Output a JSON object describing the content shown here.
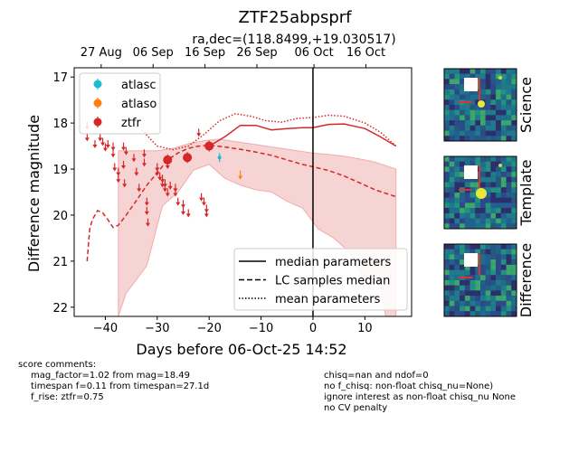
{
  "chart_data": {
    "type": "scatter",
    "title": "ZTF25abpsprf",
    "subtitle": "ra,dec=(118.8499,+19.030517)",
    "xlabel": "Days before 06-Oct-25 14:52",
    "ylabel": "Difference magnitude",
    "xlim": [
      -46,
      19
    ],
    "ylim": [
      22.2,
      16.8
    ],
    "x_ticks": [
      -40,
      -30,
      -20,
      -10,
      0,
      10
    ],
    "y_ticks": [
      17,
      18,
      19,
      20,
      21,
      22
    ],
    "top_axis": {
      "ticks": [
        {
          "x": -40.8,
          "label": "27 Aug"
        },
        {
          "x": -30.8,
          "label": "06 Sep"
        },
        {
          "x": -20.8,
          "label": "16 Sep"
        },
        {
          "x": -10.8,
          "label": "26 Sep"
        },
        {
          "x": 0.2,
          "label": "06 Oct"
        },
        {
          "x": 10.2,
          "label": "16 Oct"
        }
      ]
    },
    "vline_x": 0,
    "legend_filters": [
      {
        "name": "atlasc",
        "color": "#17becf"
      },
      {
        "name": "atlaso",
        "color": "#ff7f0e"
      },
      {
        "name": "ztfr",
        "color": "#d62728"
      }
    ],
    "legend_lines": [
      {
        "name": "median parameters",
        "style": "solid"
      },
      {
        "name": "LC samples median",
        "style": "dashed"
      },
      {
        "name": "mean parameters",
        "style": "dotted"
      }
    ],
    "model_color": "#d62728",
    "band_color": "#d62728",
    "median_params": [
      [
        -20,
        18.5
      ],
      [
        -17,
        18.3
      ],
      [
        -14,
        18.05
      ],
      [
        -11,
        18.05
      ],
      [
        -8,
        18.15
      ],
      [
        -5,
        18.12
      ],
      [
        -2,
        18.1
      ],
      [
        0,
        18.1
      ],
      [
        3,
        18.03
      ],
      [
        6,
        18.02
      ],
      [
        10,
        18.12
      ],
      [
        13,
        18.3
      ],
      [
        16,
        18.5
      ]
    ],
    "mean_params": [
      [
        -33,
        18.15
      ],
      [
        -30,
        18.5
      ],
      [
        -27,
        18.58
      ],
      [
        -24,
        18.5
      ],
      [
        -21,
        18.25
      ],
      [
        -18,
        17.95
      ],
      [
        -15,
        17.8
      ],
      [
        -12,
        17.85
      ],
      [
        -9,
        17.95
      ],
      [
        -6,
        17.98
      ],
      [
        -3,
        17.9
      ],
      [
        0,
        17.88
      ],
      [
        3,
        17.83
      ],
      [
        6,
        17.85
      ],
      [
        10,
        18
      ],
      [
        13,
        18.2
      ],
      [
        16,
        18.5
      ]
    ],
    "lc_samples_median": [
      [
        -43.5,
        21
      ],
      [
        -43,
        20.3
      ],
      [
        -42.5,
        20.1
      ],
      [
        -41.5,
        19.9
      ],
      [
        -40.5,
        19.95
      ],
      [
        -39.5,
        20.1
      ],
      [
        -38.5,
        20.27
      ],
      [
        -37.5,
        20.22
      ],
      [
        -36,
        20.0
      ],
      [
        -34,
        19.68
      ],
      [
        -32,
        19.35
      ],
      [
        -30,
        19.08
      ],
      [
        -28,
        18.8
      ],
      [
        -26,
        18.65
      ],
      [
        -24,
        18.55
      ],
      [
        -22,
        18.5
      ],
      [
        -20,
        18.48
      ],
      [
        -17,
        18.52
      ],
      [
        -14,
        18.57
      ],
      [
        -11,
        18.63
      ],
      [
        -8,
        18.7
      ],
      [
        -5,
        18.8
      ],
      [
        -2,
        18.9
      ],
      [
        0,
        18.95
      ],
      [
        3,
        19.03
      ],
      [
        6,
        19.15
      ],
      [
        9,
        19.3
      ],
      [
        12,
        19.45
      ],
      [
        16,
        19.6
      ]
    ],
    "band_upper": [
      [
        -37.5,
        18.6
      ],
      [
        -33,
        18.6
      ],
      [
        -30,
        18.6
      ],
      [
        -27,
        18.55
      ],
      [
        -24,
        18.45
      ],
      [
        -21,
        18.38
      ],
      [
        -18,
        18.35
      ],
      [
        -15,
        18.4
      ],
      [
        -12,
        18.45
      ],
      [
        -9,
        18.5
      ],
      [
        -6,
        18.55
      ],
      [
        -3,
        18.6
      ],
      [
        0,
        18.65
      ],
      [
        3,
        18.68
      ],
      [
        6,
        18.72
      ],
      [
        9,
        18.78
      ],
      [
        12,
        18.85
      ],
      [
        16,
        19.0
      ]
    ],
    "band_lower": [
      [
        16,
        22.2
      ],
      [
        14,
        22.2
      ],
      [
        13,
        21.5
      ],
      [
        10,
        21.4
      ],
      [
        7,
        20.8
      ],
      [
        4,
        20.5
      ],
      [
        1,
        20.3
      ],
      [
        -2,
        19.85
      ],
      [
        -5,
        19.7
      ],
      [
        -8,
        19.5
      ],
      [
        -11,
        19.45
      ],
      [
        -14,
        19.35
      ],
      [
        -17,
        19.2
      ],
      [
        -20,
        18.9
      ],
      [
        -23,
        19.02
      ],
      [
        -26,
        19.5
      ],
      [
        -29,
        19.8
      ],
      [
        -32,
        21.1
      ],
      [
        -34,
        21.4
      ],
      [
        -36,
        21.7
      ],
      [
        -37.5,
        22.2
      ]
    ],
    "ztfr_limits": [
      [
        -43.5,
        18.05
      ],
      [
        -43.5,
        18.3
      ],
      [
        -42,
        18.45
      ],
      [
        -41,
        18.3
      ],
      [
        -40.5,
        18.4
      ],
      [
        -40,
        18.52
      ],
      [
        -39.5,
        18.45
      ],
      [
        -38.5,
        18.5
      ],
      [
        -38.5,
        18.65
      ],
      [
        -38.2,
        18.95
      ],
      [
        -37.5,
        19.05
      ],
      [
        -37.5,
        19.2
      ],
      [
        -36.5,
        18.5
      ],
      [
        -36.5,
        18.9
      ],
      [
        -36.3,
        19.3
      ],
      [
        -36,
        18.6
      ],
      [
        -34.5,
        18.75
      ],
      [
        -34,
        19.05
      ],
      [
        -33.5,
        19.4
      ],
      [
        -32.5,
        18.65
      ],
      [
        -32.5,
        18.85
      ],
      [
        -32,
        19.7
      ],
      [
        -32,
        19.9
      ],
      [
        -31.8,
        20.15
      ],
      [
        -30,
        18.95
      ],
      [
        -30,
        19.05
      ],
      [
        -29.5,
        19.15
      ],
      [
        -29,
        19.2
      ],
      [
        -29,
        19.3
      ],
      [
        -28.5,
        19.3
      ],
      [
        -28.5,
        19.4
      ],
      [
        -28,
        18.9
      ],
      [
        -28,
        19.5
      ],
      [
        -27.5,
        19.35
      ],
      [
        -26.5,
        19.4
      ],
      [
        -26.5,
        19.5
      ],
      [
        -26,
        19.7
      ],
      [
        -25,
        19.75
      ],
      [
        -25,
        19.9
      ],
      [
        -24,
        19.95
      ],
      [
        -22,
        18.2
      ],
      [
        -21.5,
        19.6
      ],
      [
        -21,
        19.7
      ],
      [
        -20.5,
        19.85
      ],
      [
        -20.5,
        19.95
      ]
    ],
    "ztfr_detections": [
      [
        -28,
        18.8
      ],
      [
        -24.2,
        18.75
      ],
      [
        -20,
        18.5
      ]
    ],
    "atlasc_points": [
      [
        -18,
        18.75
      ]
    ],
    "atlaso_points": [
      [
        -14,
        19.15
      ]
    ],
    "score_comments": {
      "heading": "score comments:",
      "left_lines": [
        "mag_factor=1.02 from mag=18.49",
        "timespan f=0.11 from timespan=27.1d",
        "f_rise: ztfr=0.75"
      ],
      "right_lines": [
        "chisq=nan and ndof=0",
        "no f_chisq: non-float chisq_nu=None)",
        "ignore interest as non-float chisq_nu None",
        "no CV penalty"
      ]
    },
    "stamps": [
      {
        "label": "Science"
      },
      {
        "label": "Template"
      },
      {
        "label": "Difference"
      }
    ]
  }
}
